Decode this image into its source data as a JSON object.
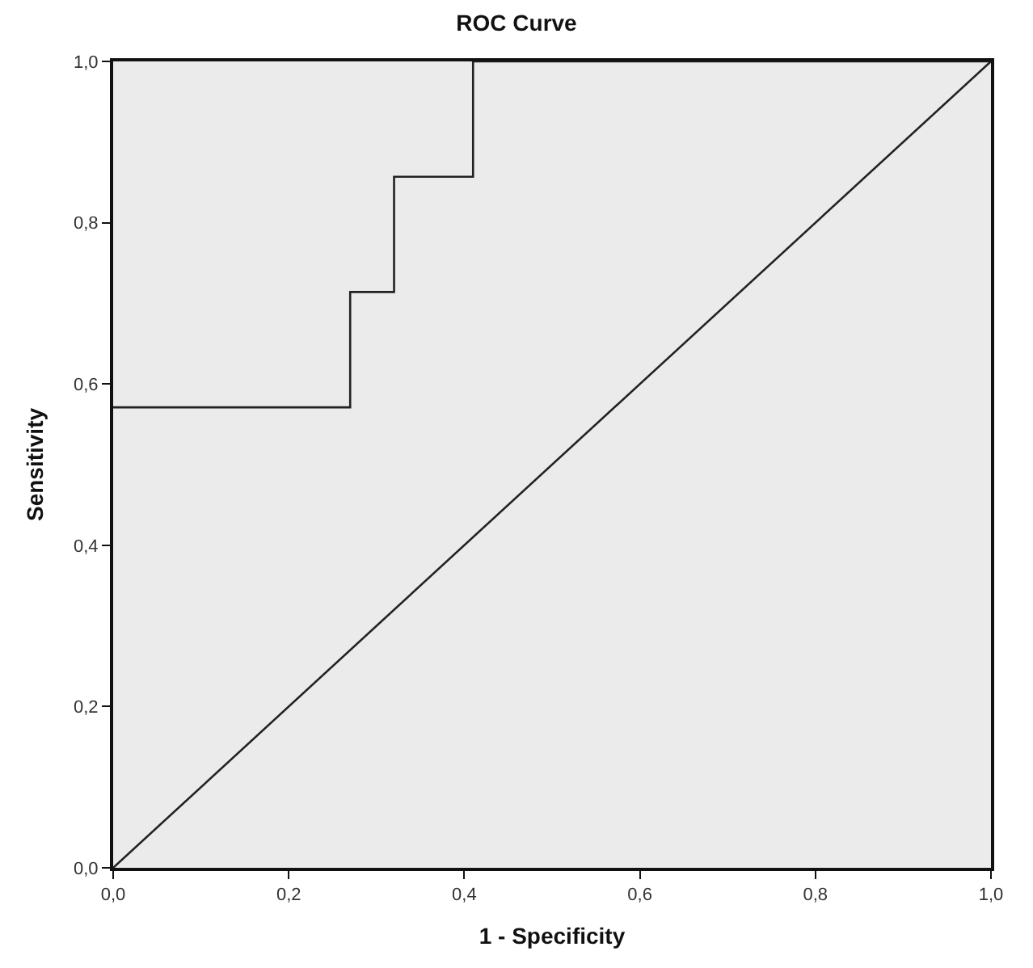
{
  "chart_data": {
    "type": "step",
    "title": "ROC Curve",
    "xlabel": "1 - Specificity",
    "ylabel": "Sensitivity",
    "xlim": [
      0,
      1
    ],
    "ylim": [
      0,
      1
    ],
    "xticks": [
      {
        "value": 0,
        "label": "0,0"
      },
      {
        "value": 0.2,
        "label": "0,2"
      },
      {
        "value": 0.4,
        "label": "0,4"
      },
      {
        "value": 0.6,
        "label": "0,6"
      },
      {
        "value": 0.8,
        "label": "0,8"
      },
      {
        "value": 1,
        "label": "1,0"
      }
    ],
    "yticks": [
      {
        "value": 0,
        "label": "0,0"
      },
      {
        "value": 0.2,
        "label": "0,2"
      },
      {
        "value": 0.4,
        "label": "0,4"
      },
      {
        "value": 0.6,
        "label": "0,6"
      },
      {
        "value": 0.8,
        "label": "0,8"
      },
      {
        "value": 1,
        "label": "1,0"
      }
    ],
    "grid": false,
    "marker": "none",
    "series": [
      {
        "color": "#222222",
        "x": [
          0,
          0.27,
          0.32,
          0.41,
          1
        ],
        "values": [
          0.571,
          0.714,
          0.857,
          1,
          1
        ]
      },
      {
        "type": "line",
        "color": "#222222",
        "x": [
          0,
          1
        ],
        "values": [
          0,
          1
        ]
      }
    ]
  }
}
